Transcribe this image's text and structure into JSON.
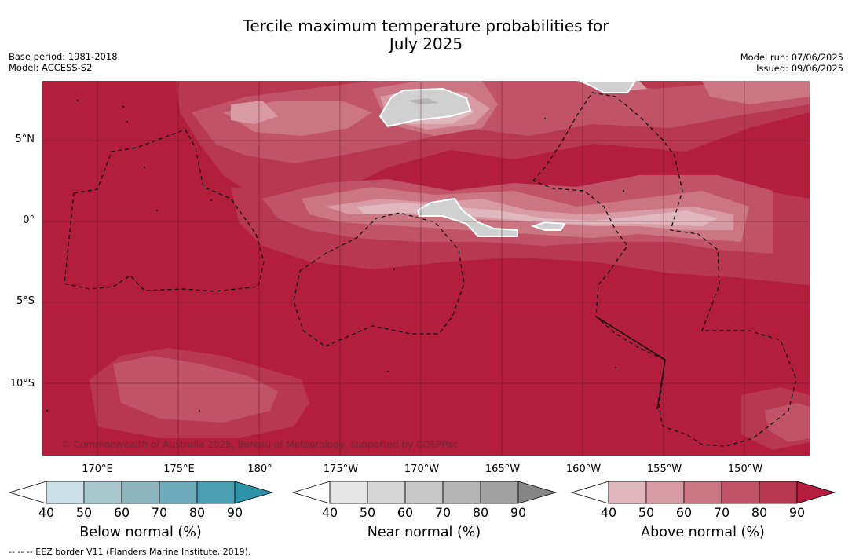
{
  "title_line1": "Tercile maximum temperature probabilities for",
  "title_line2": "July 2025",
  "meta_left": {
    "base_period": "Base period: 1981-2018",
    "model": "Model: ACCESS-S2"
  },
  "meta_right": {
    "model_run": "Model run: 07/06/2025",
    "issued": "Issued: 09/06/2025"
  },
  "map": {
    "credit": "© Commonwealth of Australia 2025, Bureau of Meteorology, supported by COSPPac",
    "lat_labels": [
      "5°N",
      "0°",
      "5°S",
      "10°S"
    ],
    "lon_labels": [
      "170°E",
      "175°E",
      "180°",
      "175°W",
      "170°W",
      "165°W",
      "160°W",
      "155°W",
      "150°W"
    ]
  },
  "legends": [
    {
      "title": "Below normal (%)",
      "ticks": [
        "40",
        "50",
        "60",
        "70",
        "80",
        "90"
      ],
      "colors": [
        "#c8e0e6",
        "#a9c8ce",
        "#8cb5c0",
        "#6fabbb",
        "#4aa0b2",
        "#2c93a8"
      ]
    },
    {
      "title": "Near normal (%)",
      "ticks": [
        "40",
        "50",
        "60",
        "70",
        "80",
        "90"
      ],
      "colors": [
        "#e6e6e6",
        "#d6d6d6",
        "#c6c6c6",
        "#b5b5b5",
        "#a1a1a1",
        "#868686"
      ]
    },
    {
      "title": "Above normal (%)",
      "ticks": [
        "40",
        "50",
        "60",
        "70",
        "80",
        "90"
      ],
      "colors": [
        "#e0b7bf",
        "#d89aa3",
        "#cc7682",
        "#c05466",
        "#b8384f",
        "#b21e3c"
      ]
    }
  ],
  "footnote": "--  --  -- EEZ border V11 (Flanders Marine Institute, 2019)."
}
